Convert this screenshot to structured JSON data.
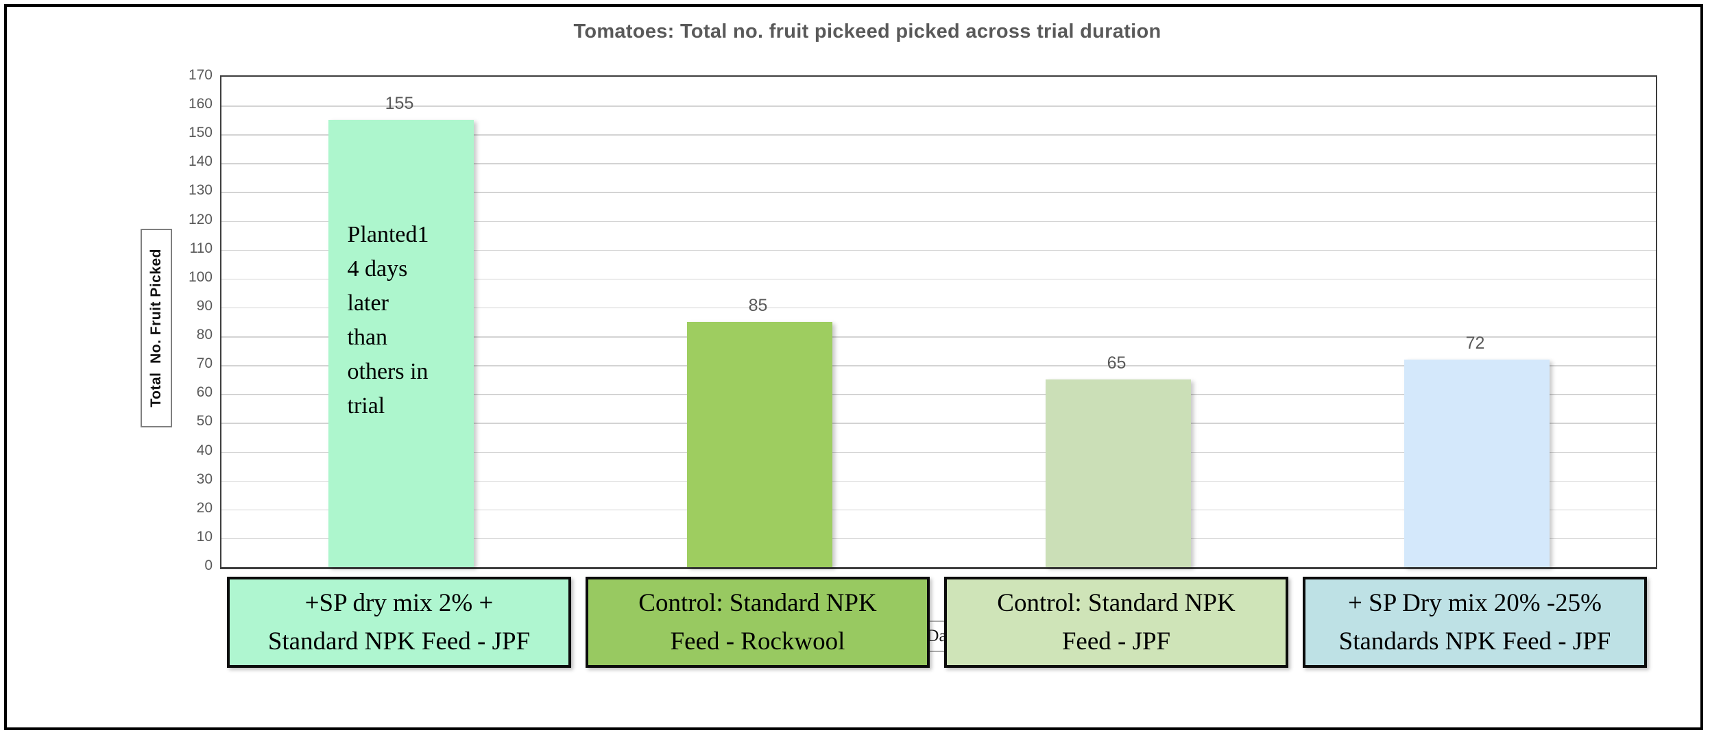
{
  "title": "Tomatoes: Total no. fruit pickeed picked across trial duration",
  "y_axis": {
    "title": "Total  No. Fruit Picked"
  },
  "x_axis": {
    "label_fragment": "Da"
  },
  "colors": {
    "title_text": "#595959",
    "tick_text": "#595959",
    "value_label_text": "#595959",
    "gridline": "#d3d3d3",
    "plot_border": "#3d3d3d",
    "frame_border": "#000000",
    "annotation_text": "#000000"
  },
  "chart_data": {
    "type": "bar",
    "title": "Tomatoes: Total no. fruit pickeed picked across trial duration",
    "xlabel": "Da",
    "ylabel": "Total  No. Fruit Picked",
    "ylim": [
      0,
      170
    ],
    "ytick_step": 10,
    "grid": true,
    "legend_position": "none",
    "categories": [
      "+SP dry mix 2% +\nStandard NPK Feed - JPF",
      "Control: Standard NPK\nFeed - Rockwool",
      "Control: Standard NPK\nFeed - JPF",
      "+ SP Dry mix 20% -25%\nStandards NPK Feed - JPF"
    ],
    "values": [
      155,
      85,
      65,
      72
    ],
    "bar_colors": [
      "#adf6cd",
      "#9ecd60",
      "#cbdfb7",
      "#d4e8fb"
    ],
    "category_box_colors": [
      "#aff6d0",
      "#98c961",
      "#cfe4b8",
      "#bee1e5"
    ],
    "annotations": [
      {
        "bar_index": 0,
        "text": "Planted1\n4 days\nlater\nthan\nothers in\ntrial"
      }
    ]
  }
}
